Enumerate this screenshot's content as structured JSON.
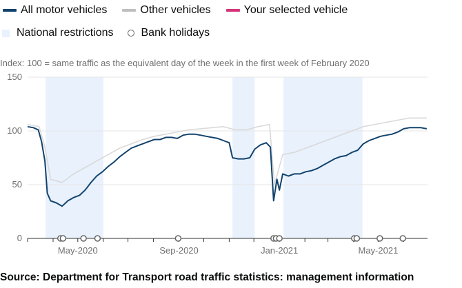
{
  "legend": {
    "row1": [
      {
        "label": "All motor vehicles",
        "color": "#12436d"
      },
      {
        "label": "Other vehicles",
        "color": "#bfbfbf"
      },
      {
        "label": "Your selected vehicle",
        "color": "#d4357b"
      }
    ],
    "restrictions": {
      "label": "National restrictions",
      "color": "#e8f1fc"
    },
    "holidays": {
      "label": "Bank holidays",
      "icon": "open-circle-icon"
    }
  },
  "subtitle": "Index: 100 = same traffic as the equivalent day of the week in the first week of February 2020",
  "source": "Source: Department for Transport road traffic statistics: management information",
  "chart_data": {
    "type": "line",
    "x_range": [
      "2020-03-01",
      "2021-06-30"
    ],
    "ylim": [
      0,
      150
    ],
    "y_ticks": [
      0,
      50,
      100,
      150
    ],
    "x_tick_labels": [
      {
        "date": "2020-05-01",
        "label": "May-2020"
      },
      {
        "date": "2020-09-01",
        "label": "Sep-2020"
      },
      {
        "date": "2021-01-01",
        "label": "Jan-2021"
      },
      {
        "date": "2021-05-01",
        "label": "May-2021"
      }
    ],
    "grid": true,
    "shaded_periods": [
      {
        "name": "National restrictions",
        "start": "2020-03-23",
        "end": "2020-06-01"
      },
      {
        "name": "National restrictions",
        "start": "2020-11-05",
        "end": "2020-12-02"
      },
      {
        "name": "National restrictions",
        "start": "2021-01-06",
        "end": "2021-04-12"
      }
    ],
    "bank_holidays": [
      "2020-04-10",
      "2020-04-13",
      "2020-05-08",
      "2020-05-25",
      "2020-08-31",
      "2020-12-25",
      "2020-12-28",
      "2021-01-01",
      "2021-04-02",
      "2021-04-05",
      "2021-05-03",
      "2021-05-31"
    ],
    "series": [
      {
        "name": "All motor vehicles",
        "color": "#12436d",
        "points": [
          [
            "2020-03-01",
            104
          ],
          [
            "2020-03-08",
            103
          ],
          [
            "2020-03-14",
            101
          ],
          [
            "2020-03-18",
            90
          ],
          [
            "2020-03-22",
            72
          ],
          [
            "2020-03-25",
            42
          ],
          [
            "2020-03-29",
            35
          ],
          [
            "2020-04-05",
            33
          ],
          [
            "2020-04-12",
            30
          ],
          [
            "2020-04-19",
            35
          ],
          [
            "2020-04-26",
            38
          ],
          [
            "2020-05-03",
            40
          ],
          [
            "2020-05-10",
            45
          ],
          [
            "2020-05-17",
            52
          ],
          [
            "2020-05-24",
            58
          ],
          [
            "2020-05-31",
            62
          ],
          [
            "2020-06-07",
            67
          ],
          [
            "2020-06-14",
            71
          ],
          [
            "2020-06-21",
            76
          ],
          [
            "2020-06-28",
            80
          ],
          [
            "2020-07-05",
            84
          ],
          [
            "2020-07-12",
            86
          ],
          [
            "2020-07-19",
            88
          ],
          [
            "2020-07-26",
            90
          ],
          [
            "2020-08-02",
            92
          ],
          [
            "2020-08-09",
            92
          ],
          [
            "2020-08-16",
            94
          ],
          [
            "2020-08-23",
            94
          ],
          [
            "2020-08-30",
            93
          ],
          [
            "2020-09-06",
            96
          ],
          [
            "2020-09-13",
            97
          ],
          [
            "2020-09-20",
            97
          ],
          [
            "2020-09-27",
            96
          ],
          [
            "2020-10-04",
            95
          ],
          [
            "2020-10-11",
            94
          ],
          [
            "2020-10-18",
            93
          ],
          [
            "2020-10-25",
            91
          ],
          [
            "2020-11-01",
            89
          ],
          [
            "2020-11-05",
            75
          ],
          [
            "2020-11-12",
            74
          ],
          [
            "2020-11-19",
            74
          ],
          [
            "2020-11-26",
            75
          ],
          [
            "2020-12-02",
            83
          ],
          [
            "2020-12-09",
            87
          ],
          [
            "2020-12-16",
            89
          ],
          [
            "2020-12-21",
            85
          ],
          [
            "2020-12-25",
            35
          ],
          [
            "2020-12-29",
            55
          ],
          [
            "2021-01-01",
            45
          ],
          [
            "2021-01-05",
            60
          ],
          [
            "2021-01-12",
            58
          ],
          [
            "2021-01-19",
            60
          ],
          [
            "2021-01-26",
            60
          ],
          [
            "2021-02-02",
            62
          ],
          [
            "2021-02-09",
            63
          ],
          [
            "2021-02-16",
            65
          ],
          [
            "2021-02-23",
            68
          ],
          [
            "2021-03-02",
            71
          ],
          [
            "2021-03-09",
            74
          ],
          [
            "2021-03-16",
            76
          ],
          [
            "2021-03-23",
            77
          ],
          [
            "2021-03-30",
            80
          ],
          [
            "2021-04-06",
            82
          ],
          [
            "2021-04-13",
            88
          ],
          [
            "2021-04-20",
            91
          ],
          [
            "2021-04-27",
            93
          ],
          [
            "2021-05-04",
            95
          ],
          [
            "2021-05-11",
            96
          ],
          [
            "2021-05-18",
            97
          ],
          [
            "2021-05-25",
            99
          ],
          [
            "2021-06-01",
            102
          ],
          [
            "2021-06-08",
            103
          ],
          [
            "2021-06-15",
            103
          ],
          [
            "2021-06-22",
            103
          ],
          [
            "2021-06-29",
            102
          ]
        ]
      },
      {
        "name": "Other vehicles",
        "color": "#d9d9d9",
        "points": [
          [
            "2020-03-01",
            106
          ],
          [
            "2020-03-15",
            104
          ],
          [
            "2020-03-22",
            85
          ],
          [
            "2020-03-29",
            55
          ],
          [
            "2020-04-12",
            52
          ],
          [
            "2020-04-26",
            60
          ],
          [
            "2020-05-10",
            66
          ],
          [
            "2020-05-24",
            72
          ],
          [
            "2020-06-07",
            78
          ],
          [
            "2020-06-21",
            84
          ],
          [
            "2020-07-05",
            88
          ],
          [
            "2020-07-19",
            92
          ],
          [
            "2020-08-02",
            95
          ],
          [
            "2020-08-16",
            97
          ],
          [
            "2020-08-30",
            99
          ],
          [
            "2020-09-13",
            101
          ],
          [
            "2020-09-27",
            102
          ],
          [
            "2020-10-11",
            103
          ],
          [
            "2020-10-25",
            104
          ],
          [
            "2020-11-08",
            101
          ],
          [
            "2020-11-22",
            101
          ],
          [
            "2020-12-06",
            104
          ],
          [
            "2020-12-20",
            106
          ],
          [
            "2020-12-26",
            50
          ],
          [
            "2021-01-05",
            78
          ],
          [
            "2021-01-19",
            80
          ],
          [
            "2021-02-02",
            84
          ],
          [
            "2021-02-16",
            88
          ],
          [
            "2021-03-02",
            92
          ],
          [
            "2021-03-16",
            96
          ],
          [
            "2021-03-30",
            100
          ],
          [
            "2021-04-13",
            104
          ],
          [
            "2021-04-27",
            106
          ],
          [
            "2021-05-11",
            108
          ],
          [
            "2021-05-25",
            110
          ],
          [
            "2021-06-08",
            112
          ],
          [
            "2021-06-29",
            112
          ]
        ]
      }
    ]
  }
}
